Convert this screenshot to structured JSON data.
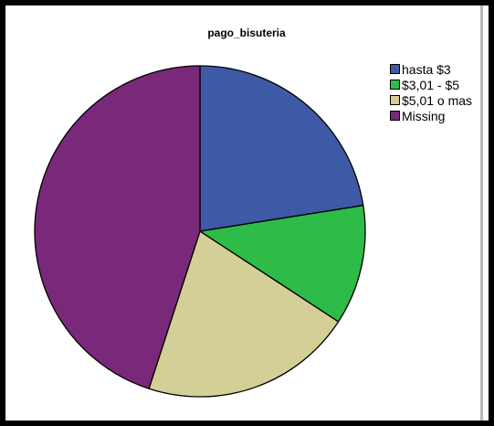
{
  "chart_data": {
    "type": "pie",
    "title": "pago_bisuteria",
    "categories": [
      "hasta $3",
      "$3,01 - $5",
      "$5,01 o mas",
      "Missing"
    ],
    "values": [
      22.5,
      11.7,
      20.8,
      45.0
    ],
    "colors": [
      "#3e59a6",
      "#2fbb47",
      "#d3cf97",
      "#7a287a"
    ],
    "start_angle_deg": 0,
    "direction": "clockwise",
    "legend_position": "right",
    "slice_labels": false
  }
}
